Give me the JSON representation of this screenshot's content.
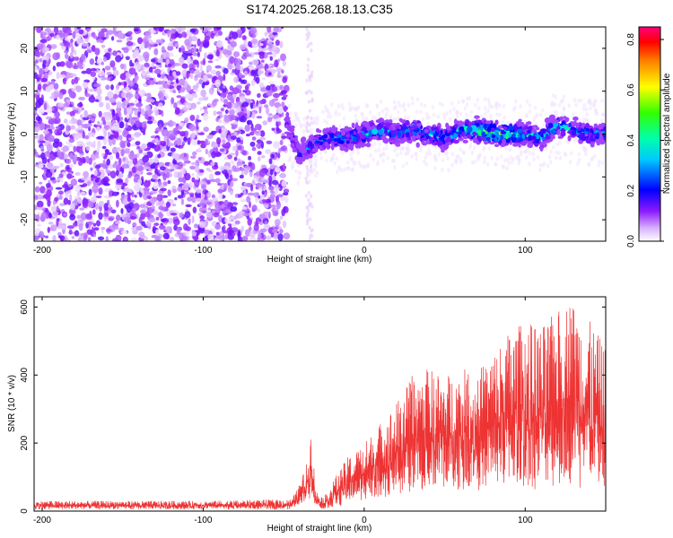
{
  "title": "S174.2025.268.18.13.C35",
  "chart_data": [
    {
      "type": "heatmap",
      "name": "spectrogram",
      "xlabel": "Height of straight line (km)",
      "ylabel": "Frequency (Hz)",
      "xlim": [
        -205,
        150
      ],
      "ylim": [
        -25,
        25
      ],
      "xticks": [
        -200,
        -100,
        0,
        100
      ],
      "yticks": [
        -20,
        -10,
        0,
        10,
        20
      ],
      "colorbar": {
        "label": "Normalized spectral amplitude",
        "range": [
          0,
          0.85
        ],
        "ticks": [
          0.0,
          0.2,
          0.4,
          0.6,
          0.8
        ],
        "ticklabels": [
          "0.0",
          "0.2",
          "0.4",
          "0.6",
          "0.8"
        ],
        "colormap": [
          "#ffffff",
          "#e9c9ff",
          "#7a00e6",
          "#0000ff",
          "#00ffff",
          "#00ff00",
          "#ffff00",
          "#ff7f00",
          "#ff0000",
          "#ff0080"
        ]
      },
      "noise_region_km": [
        -205,
        -48
      ],
      "signal_start_km": -48,
      "signal_track": [
        {
          "km": -48,
          "hz": 3,
          "amp": 0.2
        },
        {
          "km": -40,
          "hz": -5,
          "amp": 0.25
        },
        {
          "km": -30,
          "hz": -2,
          "amp": 0.3
        },
        {
          "km": -20,
          "hz": -1,
          "amp": 0.32
        },
        {
          "km": -10,
          "hz": -1,
          "amp": 0.35
        },
        {
          "km": 0,
          "hz": 0,
          "amp": 0.35
        },
        {
          "km": 10,
          "hz": 1,
          "amp": 0.38
        },
        {
          "km": 20,
          "hz": 0,
          "amp": 0.36
        },
        {
          "km": 30,
          "hz": 1,
          "amp": 0.4
        },
        {
          "km": 40,
          "hz": 0,
          "amp": 0.4
        },
        {
          "km": 50,
          "hz": -1,
          "amp": 0.35
        },
        {
          "km": 60,
          "hz": 1,
          "amp": 0.42
        },
        {
          "km": 70,
          "hz": 1,
          "amp": 0.55
        },
        {
          "km": 80,
          "hz": 0,
          "amp": 0.6
        },
        {
          "km": 90,
          "hz": 0,
          "amp": 0.55
        },
        {
          "km": 100,
          "hz": 0,
          "amp": 0.4
        },
        {
          "km": 110,
          "hz": -1,
          "amp": 0.35
        },
        {
          "km": 120,
          "hz": 2,
          "amp": 0.38
        },
        {
          "km": 130,
          "hz": 1,
          "amp": 0.35
        },
        {
          "km": 140,
          "hz": 0,
          "amp": 0.32
        },
        {
          "km": 150,
          "hz": 0,
          "amp": 0.3
        }
      ]
    },
    {
      "type": "line",
      "name": "snr",
      "xlabel": "Height of straight line (km)",
      "ylabel": "SNR (10 * v/v)",
      "xlim": [
        -205,
        150
      ],
      "ylim": [
        0,
        630
      ],
      "xticks": [
        -200,
        -100,
        0,
        100
      ],
      "yticks": [
        0,
        200,
        400,
        600
      ],
      "color": "#ee3333",
      "envelope": [
        {
          "km": -205,
          "lo": 5,
          "hi": 30
        },
        {
          "km": -100,
          "lo": 5,
          "hi": 30
        },
        {
          "km": -45,
          "lo": 5,
          "hi": 35
        },
        {
          "km": -40,
          "lo": 20,
          "hi": 80
        },
        {
          "km": -35,
          "lo": 30,
          "hi": 150
        },
        {
          "km": -33,
          "lo": 40,
          "hi": 245
        },
        {
          "km": -30,
          "lo": 10,
          "hi": 60
        },
        {
          "km": -25,
          "lo": 5,
          "hi": 40
        },
        {
          "km": -18,
          "lo": 10,
          "hi": 100
        },
        {
          "km": -10,
          "lo": 20,
          "hi": 160
        },
        {
          "km": 0,
          "lo": 30,
          "hi": 200
        },
        {
          "km": 10,
          "lo": 35,
          "hi": 260
        },
        {
          "km": 20,
          "lo": 40,
          "hi": 320
        },
        {
          "km": 30,
          "lo": 50,
          "hi": 400
        },
        {
          "km": 40,
          "lo": 55,
          "hi": 420
        },
        {
          "km": 50,
          "lo": 60,
          "hi": 400
        },
        {
          "km": 60,
          "lo": 60,
          "hi": 420
        },
        {
          "km": 70,
          "lo": 60,
          "hi": 410
        },
        {
          "km": 80,
          "lo": 60,
          "hi": 470
        },
        {
          "km": 90,
          "lo": 60,
          "hi": 530
        },
        {
          "km": 100,
          "lo": 60,
          "hi": 560
        },
        {
          "km": 110,
          "lo": 60,
          "hi": 540
        },
        {
          "km": 120,
          "lo": 60,
          "hi": 590
        },
        {
          "km": 128,
          "lo": 60,
          "hi": 630
        },
        {
          "km": 140,
          "lo": 60,
          "hi": 560
        },
        {
          "km": 150,
          "lo": 60,
          "hi": 480
        }
      ]
    }
  ]
}
